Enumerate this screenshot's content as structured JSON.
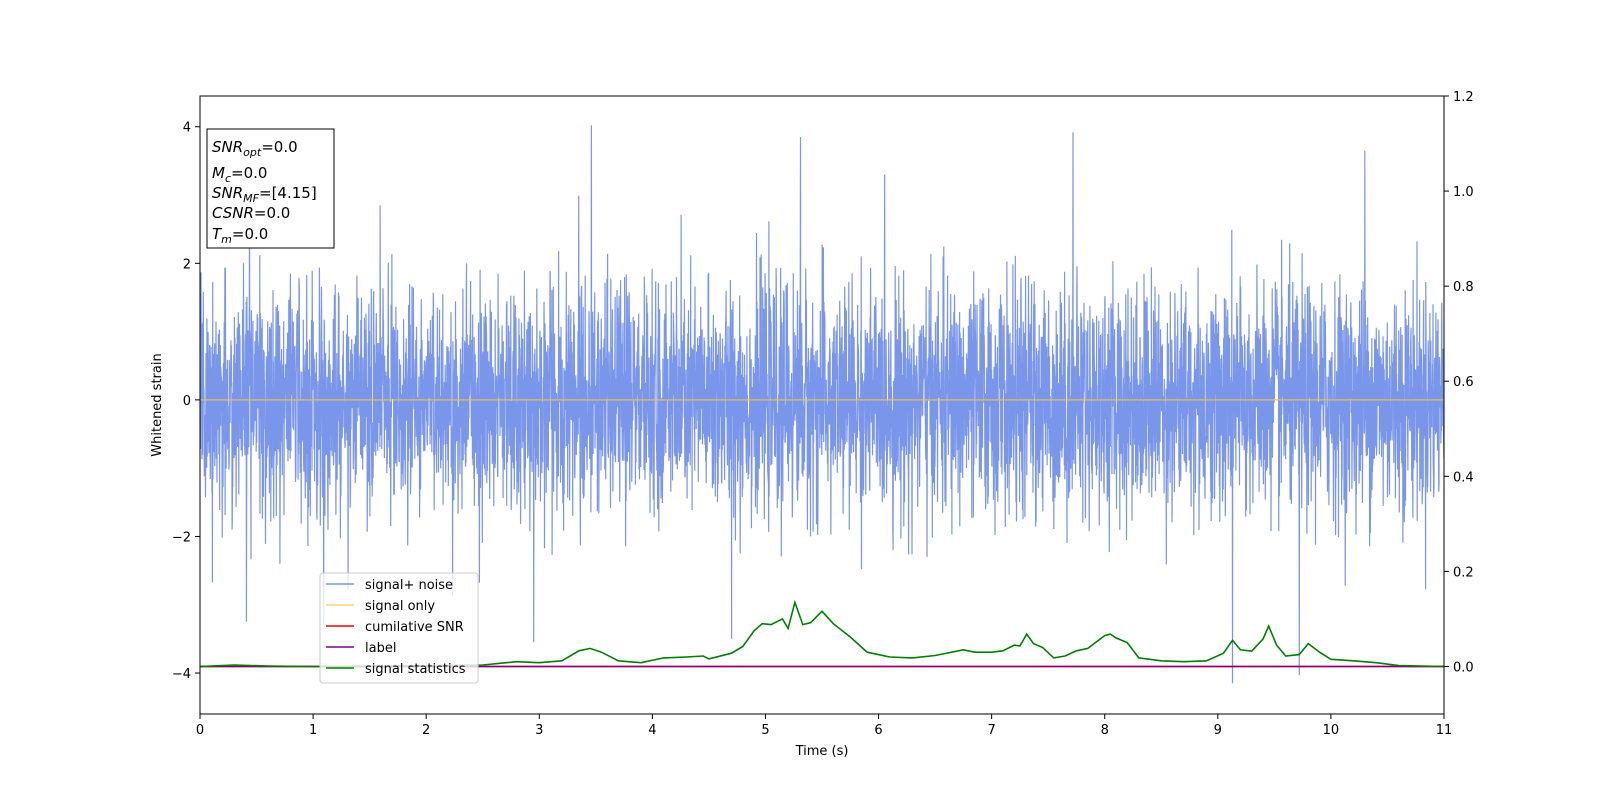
{
  "chart_data": {
    "type": "line",
    "xlabel": "Time (s)",
    "ylabel": "Whitened strain",
    "xlim": [
      0,
      11
    ],
    "ylim": [
      -4.6,
      4.45
    ],
    "y2lim": [
      -0.1,
      1.2
    ],
    "x_ticks": [
      "0",
      "1",
      "2",
      "3",
      "4",
      "5",
      "6",
      "7",
      "8",
      "9",
      "10",
      "11"
    ],
    "y_ticks": [
      "−4",
      "−2",
      "0",
      "2",
      "4"
    ],
    "y2_ticks": [
      "0.0",
      "0.2",
      "0.4",
      "0.6",
      "0.8",
      "1.0",
      "1.2"
    ],
    "grid": false,
    "legend_position": "lower-left",
    "info_box": {
      "lines": [
        {
          "name": "SNR",
          "sub": "opt",
          "value": "=0.0"
        },
        {
          "name": "M",
          "sub": "c",
          "value": "=0.0"
        },
        {
          "name": "SNR",
          "sub": "MF",
          "value": "=[4.15]"
        },
        {
          "name": "CSNR",
          "sub": "",
          "value": "=0.0"
        },
        {
          "name": "T",
          "sub": "m",
          "value": "=0.0"
        }
      ]
    },
    "series": [
      {
        "name": "signal+ noise",
        "axis": "left",
        "color": "#4169e1",
        "kind": "noise",
        "noise_std": 0.82,
        "x_range": [
          0,
          11
        ],
        "notable_peaks": [
          [
            3.46,
            4.02
          ],
          [
            5.31,
            3.85
          ],
          [
            7.72,
            3.92
          ],
          [
            10.3,
            3.65
          ],
          [
            9.13,
            -4.15
          ],
          [
            9.72,
            -4.03
          ],
          [
            0.41,
            -3.25
          ],
          [
            2.95,
            -3.55
          ],
          [
            4.7,
            -3.5
          ]
        ]
      },
      {
        "name": "signal only",
        "axis": "left",
        "color": "#ffbf40",
        "x": [
          0,
          11
        ],
        "y": [
          0,
          0
        ]
      },
      {
        "name": "cumilative SNR",
        "axis": "right",
        "color": "#ff0000",
        "x": [
          0,
          11
        ],
        "y": [
          0,
          0
        ]
      },
      {
        "name": "label",
        "axis": "right",
        "color": "#800080",
        "x": [
          0,
          11
        ],
        "y": [
          0,
          0
        ]
      },
      {
        "name": "signal statistics",
        "axis": "right",
        "color": "#008000",
        "x": [
          0,
          0.3,
          0.6,
          1.0,
          1.5,
          2.0,
          2.5,
          2.8,
          3.0,
          3.2,
          3.35,
          3.45,
          3.55,
          3.7,
          3.9,
          4.1,
          4.3,
          4.45,
          4.5,
          4.7,
          4.8,
          4.9,
          4.97,
          5.05,
          5.15,
          5.2,
          5.26,
          5.33,
          5.4,
          5.5,
          5.6,
          5.75,
          5.9,
          6.1,
          6.3,
          6.5,
          6.75,
          6.85,
          7.0,
          7.1,
          7.2,
          7.25,
          7.31,
          7.37,
          7.45,
          7.55,
          7.65,
          7.75,
          7.85,
          8.0,
          8.05,
          8.1,
          8.2,
          8.3,
          8.5,
          8.7,
          8.9,
          9.05,
          9.13,
          9.2,
          9.3,
          9.4,
          9.45,
          9.52,
          9.6,
          9.72,
          9.8,
          9.9,
          10.0,
          10.2,
          10.4,
          10.6,
          10.8,
          11.0
        ],
        "y": [
          0.0,
          0.003,
          0.001,
          0.0,
          0.001,
          0.002,
          0.003,
          0.01,
          0.008,
          0.012,
          0.033,
          0.038,
          0.03,
          0.012,
          0.008,
          0.018,
          0.02,
          0.022,
          0.016,
          0.028,
          0.042,
          0.075,
          0.09,
          0.088,
          0.1,
          0.08,
          0.135,
          0.088,
          0.092,
          0.116,
          0.09,
          0.062,
          0.03,
          0.02,
          0.018,
          0.023,
          0.035,
          0.03,
          0.03,
          0.033,
          0.045,
          0.043,
          0.068,
          0.048,
          0.04,
          0.018,
          0.022,
          0.033,
          0.038,
          0.065,
          0.068,
          0.06,
          0.05,
          0.018,
          0.012,
          0.01,
          0.012,
          0.028,
          0.055,
          0.035,
          0.032,
          0.058,
          0.085,
          0.045,
          0.022,
          0.025,
          0.048,
          0.03,
          0.015,
          0.012,
          0.008,
          0.002,
          0.001,
          0.0
        ]
      }
    ]
  }
}
